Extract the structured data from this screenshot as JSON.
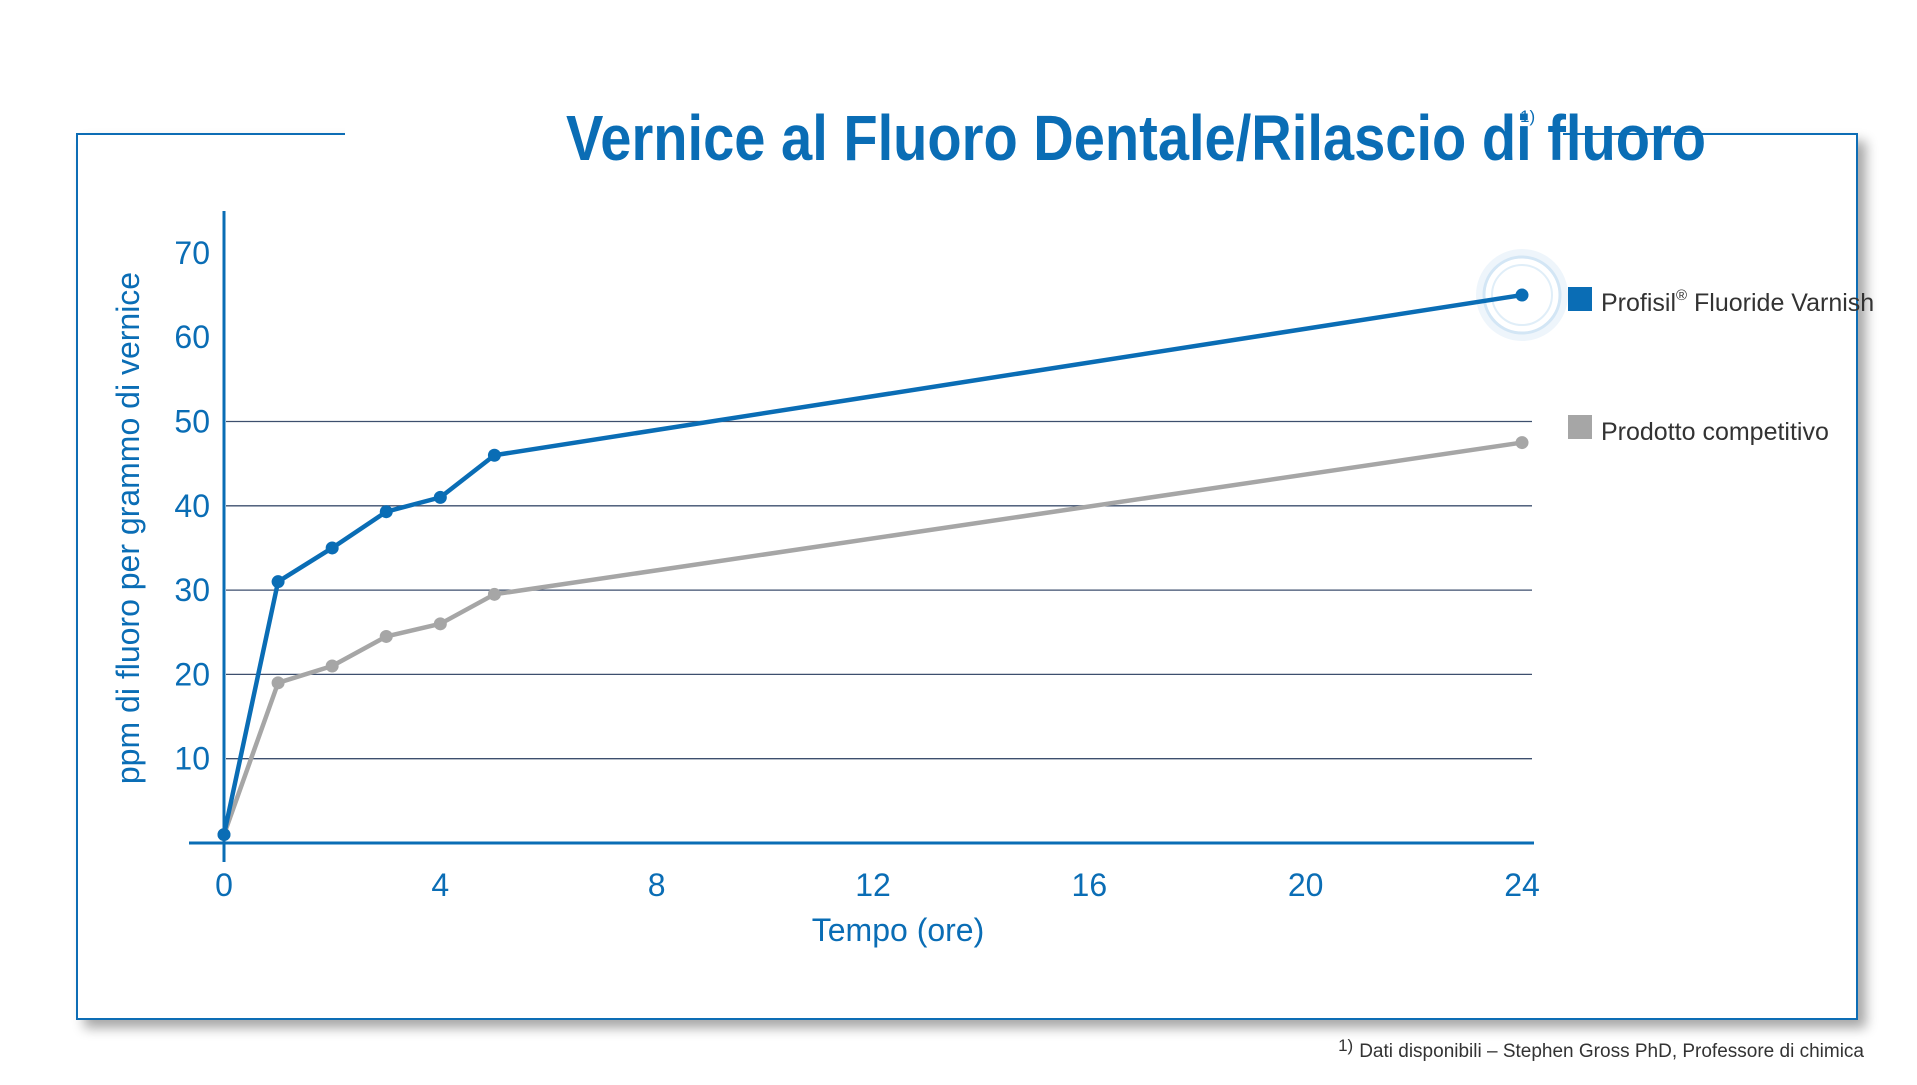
{
  "colors": {
    "brand": "#0a6db5",
    "series_1": "#0a6db5",
    "series_2": "#a6a6a6",
    "gridline": "#3d4f6e",
    "frame": "#0a6db5"
  },
  "title": "Vernice al Fluoro Dentale/Rilascio di fluoro",
  "title_note": "1)",
  "footnote": {
    "marker": "1)",
    "text": "Dati disponibili – Stephen Gross PhD, Professore di chimica"
  },
  "chart_data": {
    "type": "line",
    "title": "Vernice al Fluoro Dentale/Rilascio di fluoro",
    "xlabel": "Tempo (ore)",
    "ylabel": "ppm di fluoro per grammo di vernice",
    "xlim": [
      0,
      24
    ],
    "ylim": [
      0,
      75
    ],
    "x_ticks": [
      0,
      4,
      8,
      12,
      16,
      20,
      24
    ],
    "y_ticks": [
      10,
      20,
      30,
      40,
      50,
      60,
      70
    ],
    "gridlines": [
      10,
      20,
      30,
      40,
      50
    ],
    "legend_position": "right",
    "series": [
      {
        "name": "Profisil",
        "name_mark": "®",
        "name_rest": " Fluoride Varnish",
        "color": "#0a6db5",
        "points": [
          [
            0,
            1
          ],
          [
            1,
            31
          ],
          [
            2,
            35
          ],
          [
            3,
            39.3
          ],
          [
            4,
            41
          ],
          [
            5,
            46
          ],
          [
            24,
            65
          ]
        ]
      },
      {
        "name": "Prodotto competitivo",
        "color": "#a6a6a6",
        "points": [
          [
            0,
            1
          ],
          [
            1,
            19
          ],
          [
            2,
            21
          ],
          [
            3,
            24.5
          ],
          [
            4,
            26
          ],
          [
            5,
            29.5
          ],
          [
            24,
            47.5
          ]
        ]
      }
    ]
  }
}
